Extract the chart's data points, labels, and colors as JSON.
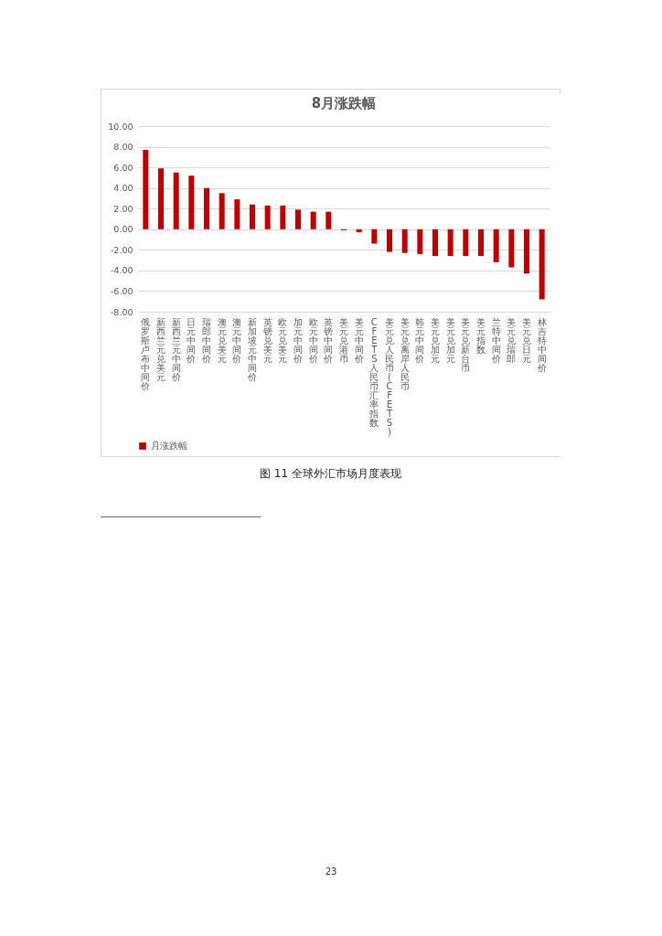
{
  "chart_data": {
    "type": "bar",
    "title": "8月涨跌幅",
    "categories": [
      "俄罗斯卢布中间价",
      "新西兰元兑美元",
      "新西兰元中间价",
      "日元中间价",
      "瑞郎中间价",
      "澳元兑美元",
      "澳元中间价",
      "新加坡元中间价",
      "英镑兑美元",
      "欧元兑美元",
      "加元中间价",
      "欧元中间价",
      "英镑中间价",
      "美元兑港币",
      "美元中间价",
      "CFETS人民币汇率指数",
      "美元兑人民币(CFETS)",
      "美元兑离岸人民币",
      "韩元中间价",
      "美元兑加元",
      "美元兑加元",
      "美元兑新台币",
      "美元指数",
      "兰特中间价",
      "美元兑瑞郎",
      "美元兑日元",
      "林吉特中间价"
    ],
    "series": [
      {
        "name": "月涨跌幅",
        "color": "#c00000",
        "values": [
          7.7,
          5.9,
          5.5,
          5.2,
          4.0,
          3.5,
          2.9,
          2.4,
          2.3,
          2.3,
          1.9,
          1.7,
          1.7,
          -0.1,
          -0.3,
          -1.4,
          -2.2,
          -2.3,
          -2.4,
          -2.6,
          -2.6,
          -2.6,
          -2.6,
          -3.2,
          -3.7,
          -4.3,
          -6.8
        ]
      }
    ],
    "ylim": [
      -8,
      10
    ],
    "yticks": [
      {
        "value": -8,
        "label": "-8.00"
      },
      {
        "value": -6,
        "label": "-6.00"
      },
      {
        "value": -4,
        "label": "-4.00"
      },
      {
        "value": -2,
        "label": "-2.00"
      },
      {
        "value": 0,
        "label": "0.00"
      },
      {
        "value": 2,
        "label": "2.00"
      },
      {
        "value": 4,
        "label": "4.00"
      },
      {
        "value": 6,
        "label": "6.00"
      },
      {
        "value": 8,
        "label": "8.00"
      },
      {
        "value": 10,
        "label": "10.00"
      }
    ],
    "grid": "y",
    "legend": "bottom",
    "annotations": [
      "图 11 全球外汇市场月度表现",
      "23"
    ]
  }
}
